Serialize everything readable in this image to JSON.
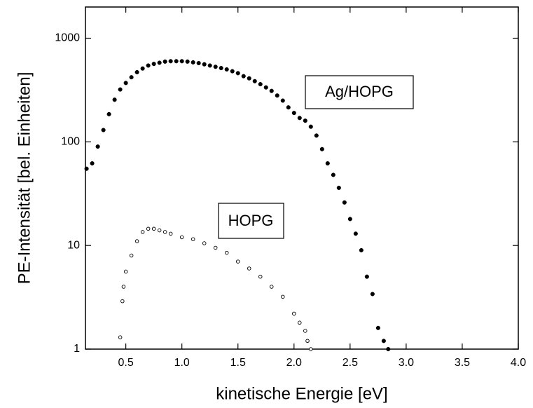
{
  "chart_data": {
    "type": "scatter",
    "xlabel": "kinetische Energie [eV]",
    "ylabel": "PE-Intensität [bel. Einheiten]",
    "log_y": true,
    "xlim": [
      0.14,
      4.0
    ],
    "ylim": [
      1,
      2000
    ],
    "xticks": [
      0.5,
      {
        "value": 1,
        "label": "1.0"
      },
      1.5,
      {
        "value": 2,
        "label": "2.0"
      },
      2.5,
      {
        "value": 3,
        "label": "3.0"
      },
      3.5,
      {
        "value": 4,
        "label": "4.0"
      }
    ],
    "yticks": [
      1,
      10,
      100,
      1000
    ],
    "series": [
      {
        "name": "Ag/HOPG",
        "color": "#000000",
        "marker": "filled",
        "x": [
          0.15,
          0.2,
          0.25,
          0.3,
          0.35,
          0.4,
          0.45,
          0.5,
          0.55,
          0.6,
          0.65,
          0.7,
          0.75,
          0.8,
          0.85,
          0.9,
          0.95,
          1.0,
          1.05,
          1.1,
          1.15,
          1.2,
          1.25,
          1.3,
          1.35,
          1.4,
          1.45,
          1.5,
          1.55,
          1.6,
          1.65,
          1.7,
          1.75,
          1.8,
          1.85,
          1.9,
          1.95,
          2.0,
          2.05,
          2.1,
          2.15,
          2.2,
          2.25,
          2.3,
          2.35,
          2.4,
          2.45,
          2.5,
          2.55,
          2.6,
          2.65,
          2.7,
          2.75,
          2.8,
          2.84
        ],
        "values": [
          55,
          62,
          90,
          130,
          185,
          255,
          320,
          370,
          420,
          470,
          510,
          545,
          565,
          580,
          595,
          600,
          600,
          600,
          595,
          585,
          575,
          560,
          545,
          530,
          515,
          500,
          480,
          460,
          430,
          410,
          385,
          360,
          335,
          310,
          280,
          250,
          215,
          190,
          170,
          160,
          140,
          115,
          85,
          62,
          48,
          36,
          26,
          18,
          13,
          9,
          5,
          3.4,
          1.6,
          1.2,
          1.0
        ]
      },
      {
        "name": "HOPG",
        "color": "#000000",
        "marker": "open",
        "x": [
          0.45,
          0.47,
          0.48,
          0.5,
          0.55,
          0.6,
          0.65,
          0.7,
          0.75,
          0.8,
          0.85,
          0.9,
          1.0,
          1.1,
          1.2,
          1.3,
          1.4,
          1.5,
          1.6,
          1.7,
          1.8,
          1.9,
          2.0,
          2.05,
          2.1,
          2.12,
          2.15
        ],
        "values": [
          1.3,
          2.9,
          4,
          5.6,
          8,
          11,
          13.5,
          14.5,
          14.5,
          14,
          13.5,
          13,
          12,
          11.5,
          10.5,
          9.5,
          8.5,
          7,
          6,
          5,
          4,
          3.2,
          2.2,
          1.8,
          1.5,
          1.2,
          1.0
        ]
      }
    ]
  }
}
